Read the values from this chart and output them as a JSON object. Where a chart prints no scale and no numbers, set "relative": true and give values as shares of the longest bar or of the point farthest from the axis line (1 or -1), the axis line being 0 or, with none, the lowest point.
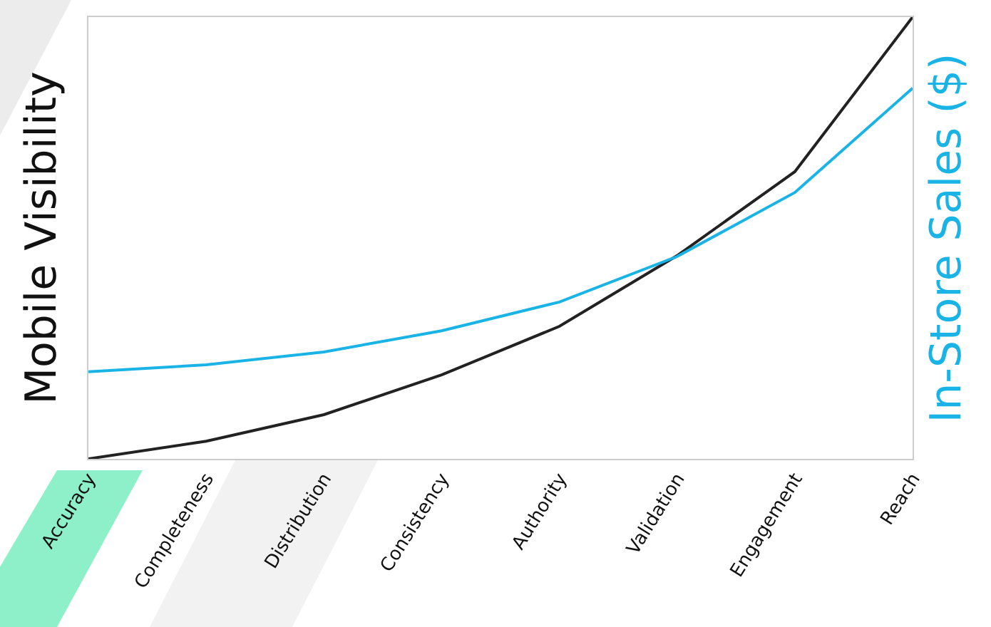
{
  "chart_data": {
    "type": "line",
    "relative": true,
    "ylabel": "Mobile Visibility",
    "y2label": "In-Store Sales ($)",
    "categories": [
      "Accuracy",
      "Completeness",
      "Distribution",
      "Consistency",
      "Authority",
      "Validation",
      "Engagement",
      "Reach"
    ],
    "series": [
      {
        "color": "#222222",
        "values": [
          0,
          0.04,
          0.1,
          0.19,
          0.3,
          0.46,
          0.65,
          1
        ]
      },
      {
        "color": "#1ab3e6",
        "axis": "y2",
        "values": [
          0.197,
          0.213,
          0.242,
          0.29,
          0.355,
          0.458,
          0.603,
          0.839
        ]
      }
    ]
  }
}
